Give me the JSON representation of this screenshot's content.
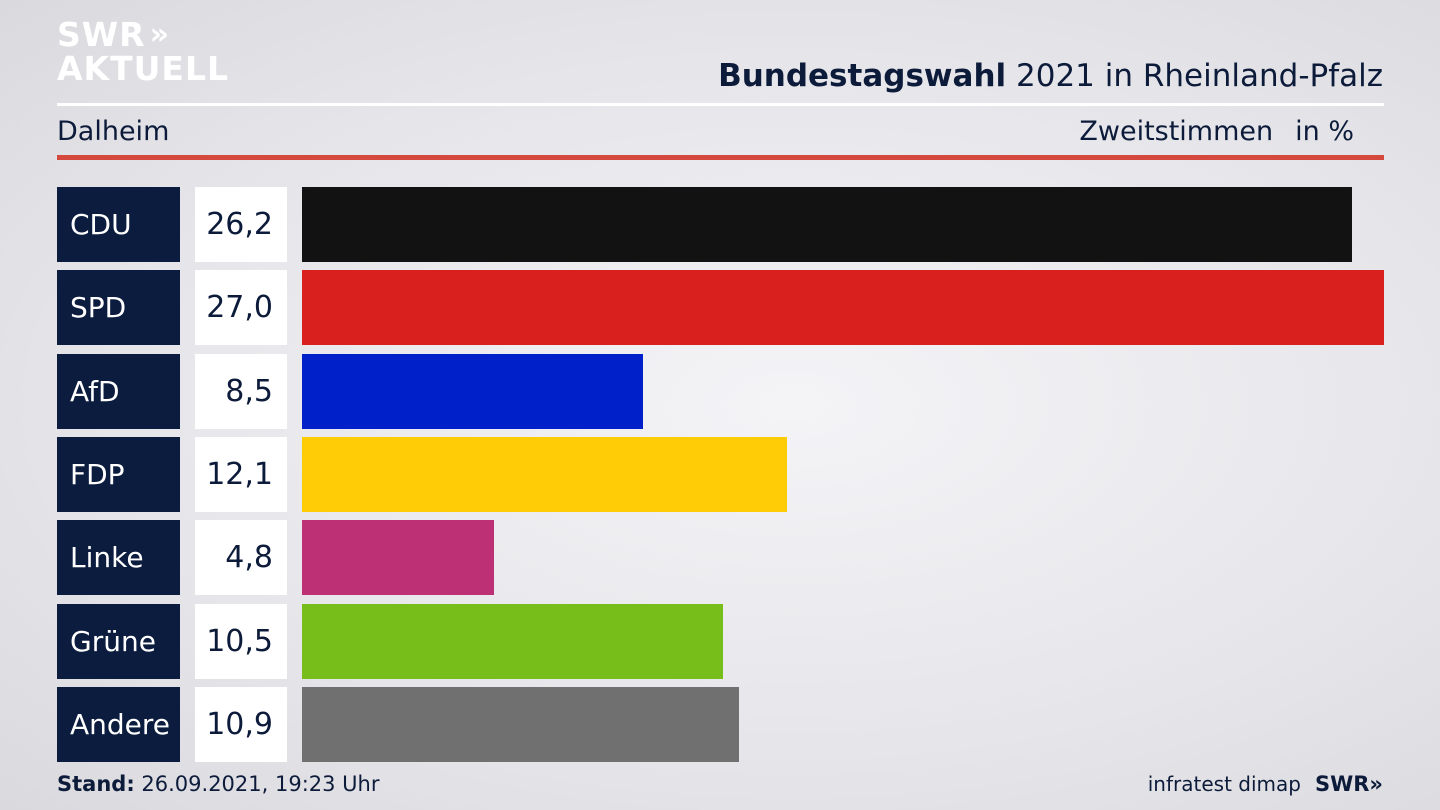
{
  "brand": {
    "logo_line1": "SWR",
    "logo_line2": "AKTUELL",
    "logo_chevrons": "»"
  },
  "header": {
    "title_bold": "Bundestagswahl",
    "title_rest": " 2021 in Rheinland-Pfalz",
    "location": "Dalheim",
    "measure": "Zweitstimmen",
    "unit": "in %"
  },
  "colors": {
    "title_red_rule": "#d4483e",
    "label_box": "#0b1c3f"
  },
  "chart_data": {
    "type": "bar",
    "orientation": "horizontal",
    "title": "Bundestagswahl 2021 in Rheinland-Pfalz",
    "subtitle": "Dalheim",
    "xlabel": "Zweitstimmen in %",
    "categories": [
      "CDU",
      "SPD",
      "AfD",
      "FDP",
      "Linke",
      "Grüne",
      "Andere"
    ],
    "values": [
      26.2,
      27.0,
      8.5,
      12.1,
      4.8,
      10.5,
      10.9
    ],
    "value_labels": [
      "26,2",
      "27,0",
      "8,5",
      "12,1",
      "4,8",
      "10,5",
      "10,9"
    ],
    "colors": [
      "#121212",
      "#d9201f",
      "#0021c9",
      "#ffcc06",
      "#be3075",
      "#78be1b",
      "#707070"
    ],
    "xlim": [
      0,
      27.0
    ],
    "grid": false,
    "legend": "none"
  },
  "footer": {
    "stand_label": "Stand:",
    "stand_value": " 26.09.2021, 19:23 Uhr",
    "source": "infratest dimap",
    "broadcaster": "SWR",
    "broadcaster_chevrons": "»"
  }
}
